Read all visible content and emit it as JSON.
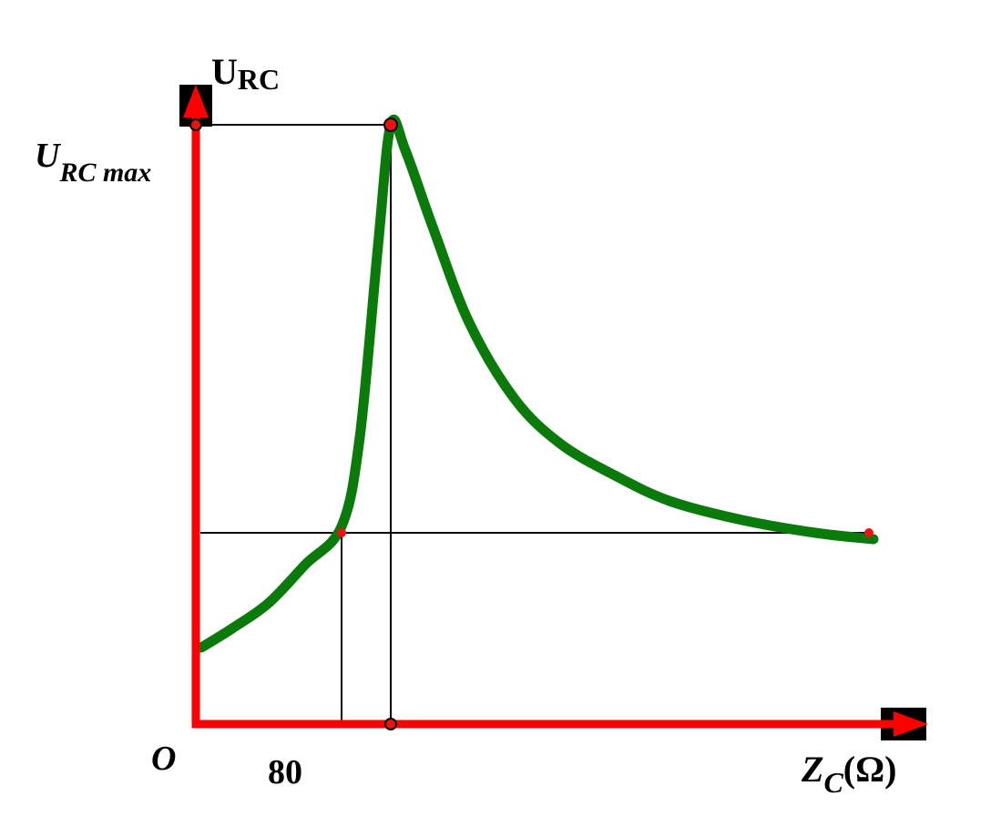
{
  "chart_data": {
    "type": "line",
    "title": "",
    "ylabel": {
      "main": "U",
      "sub": "RC"
    },
    "xlabel": {
      "main": "Z",
      "sub": "C",
      "unit": "(Ω)"
    },
    "origin_label": "O",
    "y_mark_label": {
      "main": "U",
      "sub": "RC max"
    },
    "x_tick_label": "80",
    "xlim": [
      0,
      400
    ],
    "ylim": [
      0,
      1.0
    ],
    "x_mark_value": 80,
    "x_peak_value": 107,
    "y_ref_value": 0.3,
    "y_max_value": 0.94,
    "grid": false,
    "series": [
      {
        "color": "#0a7a0a",
        "x": [
          3,
          20,
          40,
          60,
          80,
          90,
          100,
          107,
          115,
          130,
          150,
          175,
          200,
          230,
          260,
          300,
          340,
          372
        ],
        "y": [
          0.12,
          0.15,
          0.19,
          0.25,
          0.31,
          0.45,
          0.75,
          0.94,
          0.9,
          0.78,
          0.63,
          0.51,
          0.44,
          0.39,
          0.35,
          0.32,
          0.3,
          0.29
        ]
      }
    ],
    "colors": {
      "axis": "#ff0000",
      "curve": "#0a7a0a",
      "guides": "#000000",
      "points": "#ee1111",
      "arrow_block": "#000000"
    }
  }
}
